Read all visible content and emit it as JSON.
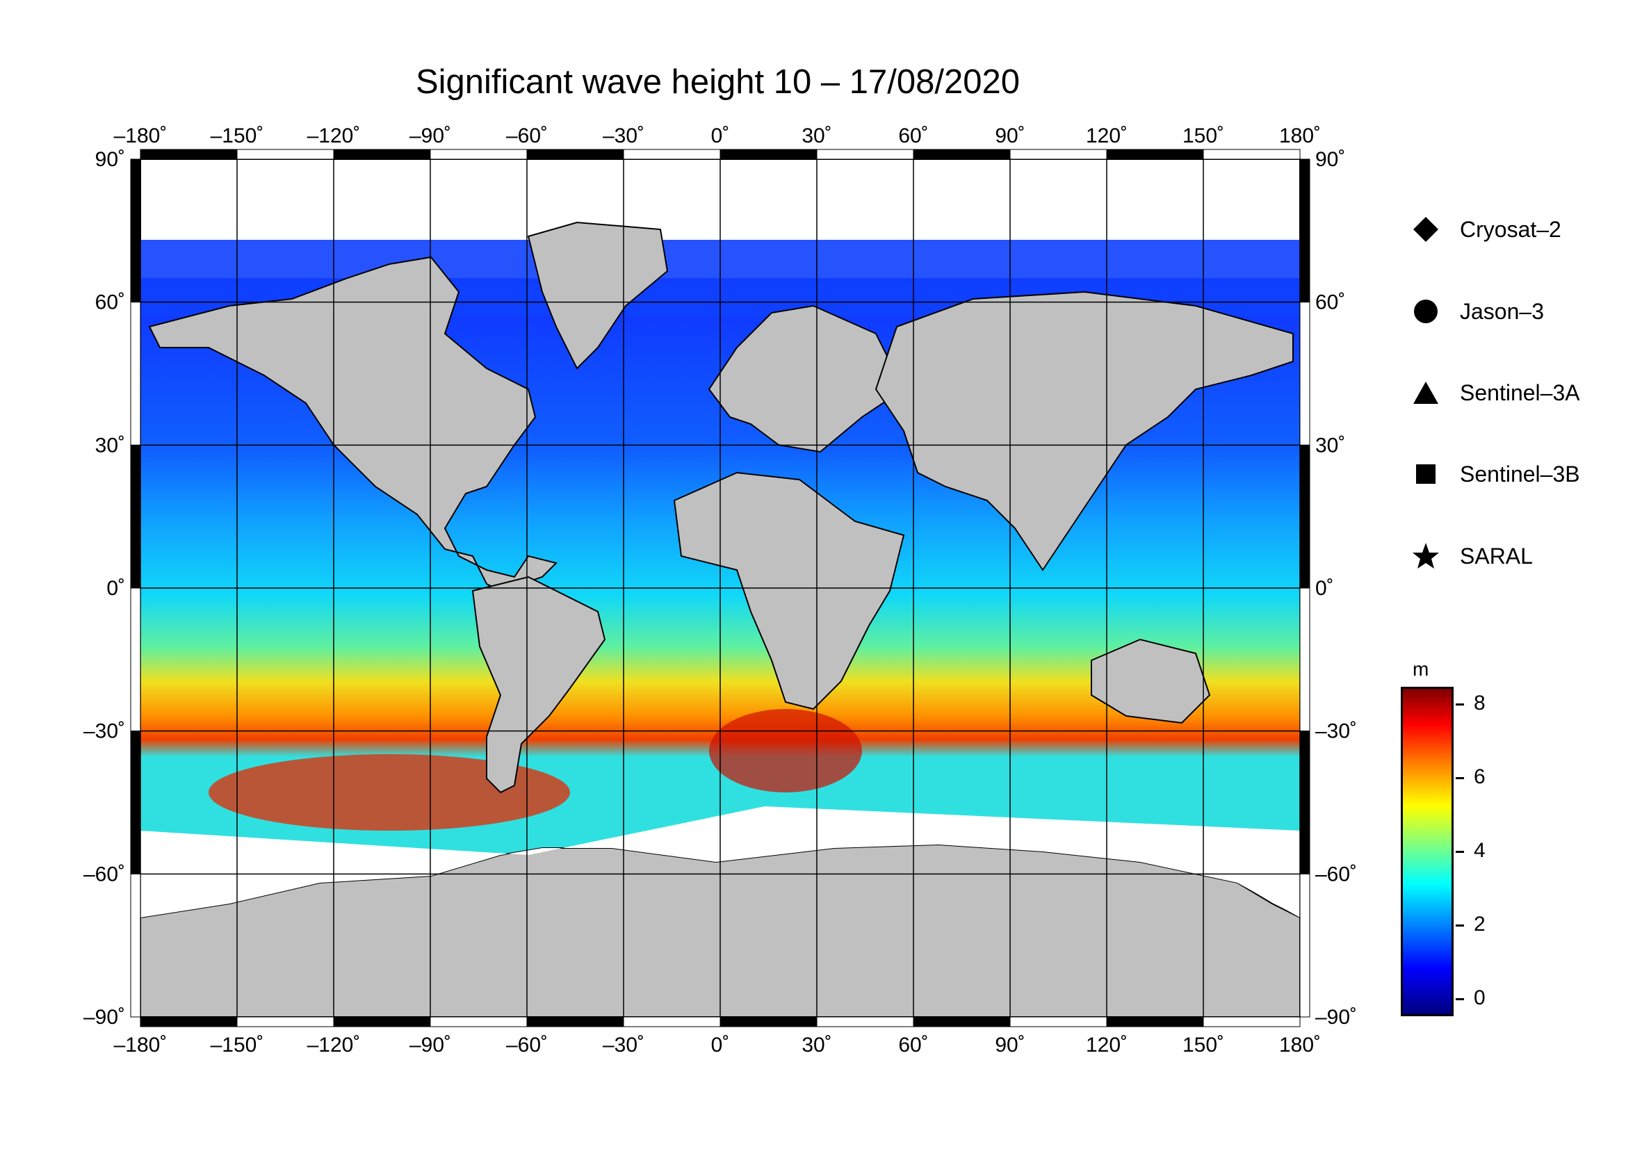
{
  "title": "Significant wave height 10 – 17/08/2020",
  "axes": {
    "lon_ticks": [
      "–180˚",
      "–150˚",
      "–120˚",
      "–90˚",
      "–60˚",
      "–30˚",
      "0˚",
      "30˚",
      "60˚",
      "90˚",
      "120˚",
      "150˚",
      "180˚"
    ],
    "lat_ticks": [
      "90˚",
      "60˚",
      "30˚",
      "0˚",
      "–30˚",
      "–60˚",
      "–90˚"
    ],
    "lon_range": [
      -180,
      180
    ],
    "lat_range": [
      -90,
      90
    ],
    "grid": true
  },
  "legend": {
    "items": [
      {
        "icon": "diamond-icon",
        "label": "Cryosat–2"
      },
      {
        "icon": "circle-icon",
        "label": "Jason–3"
      },
      {
        "icon": "triangle-icon",
        "label": "Sentinel–3A"
      },
      {
        "icon": "square-icon",
        "label": "Sentinel–3B"
      },
      {
        "icon": "star-icon",
        "label": "SARAL"
      }
    ]
  },
  "colorbar": {
    "unit": "m",
    "ticks": [
      "8",
      "6",
      "4",
      "2",
      "0"
    ],
    "range": [
      -0.5,
      8.5
    ],
    "colors": [
      "#00007f",
      "#0000ff",
      "#007fff",
      "#00ffff",
      "#7fff7f",
      "#ffff00",
      "#ff7f00",
      "#ff0000",
      "#7f0000"
    ]
  },
  "colors": {
    "land": "#c0c0c0",
    "ice": "#ffffff",
    "border": "#000000"
  }
}
